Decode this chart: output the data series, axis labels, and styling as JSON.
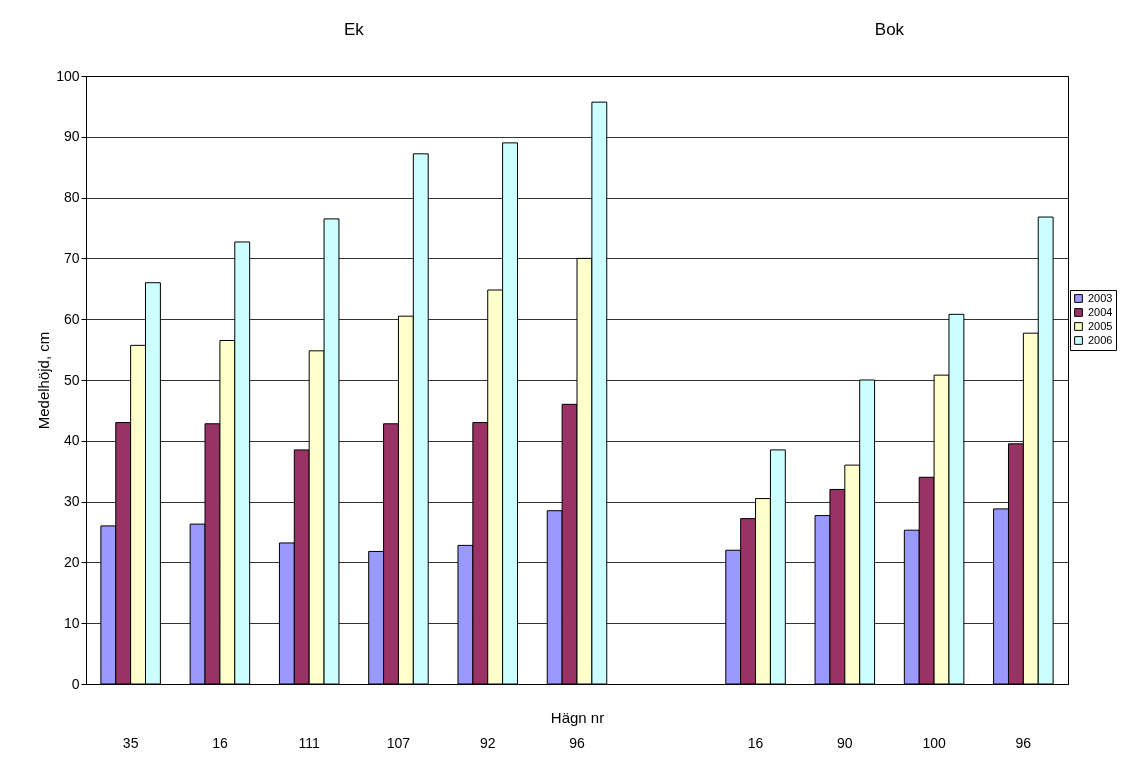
{
  "chart_data": {
    "type": "bar",
    "ylabel": "Medelhöjd, cm",
    "xlabel": "Hägn nr",
    "categories": [
      "35",
      "16",
      "111",
      "107",
      "92",
      "96",
      null,
      "16",
      "90",
      "100",
      "96"
    ],
    "series": [
      {
        "name": "2003",
        "color": "#9999ff",
        "values": [
          26,
          26.3,
          23.2,
          21.8,
          22.8,
          28.5,
          null,
          22,
          27.7,
          25.3,
          28.8
        ]
      },
      {
        "name": "2004",
        "color": "#993366",
        "values": [
          43,
          42.8,
          38.5,
          42.8,
          43,
          46,
          null,
          27.2,
          32,
          34,
          39.5
        ]
      },
      {
        "name": "2005",
        "color": "#ffffcc",
        "values": [
          55.7,
          56.5,
          54.8,
          60.5,
          64.8,
          70,
          null,
          30.5,
          36,
          50.8,
          57.7
        ]
      },
      {
        "name": "2006",
        "color": "#ccffff",
        "values": [
          66,
          72.7,
          76.5,
          87.2,
          89,
          95.7,
          null,
          38.5,
          50,
          60.8,
          76.8
        ]
      }
    ],
    "ylim": [
      0,
      100
    ],
    "yticks": [
      0,
      10,
      20,
      30,
      40,
      50,
      60,
      70,
      80,
      90,
      100
    ],
    "grid": "y",
    "legend": "right",
    "annotations": [
      "Ek",
      "Bok"
    ]
  }
}
